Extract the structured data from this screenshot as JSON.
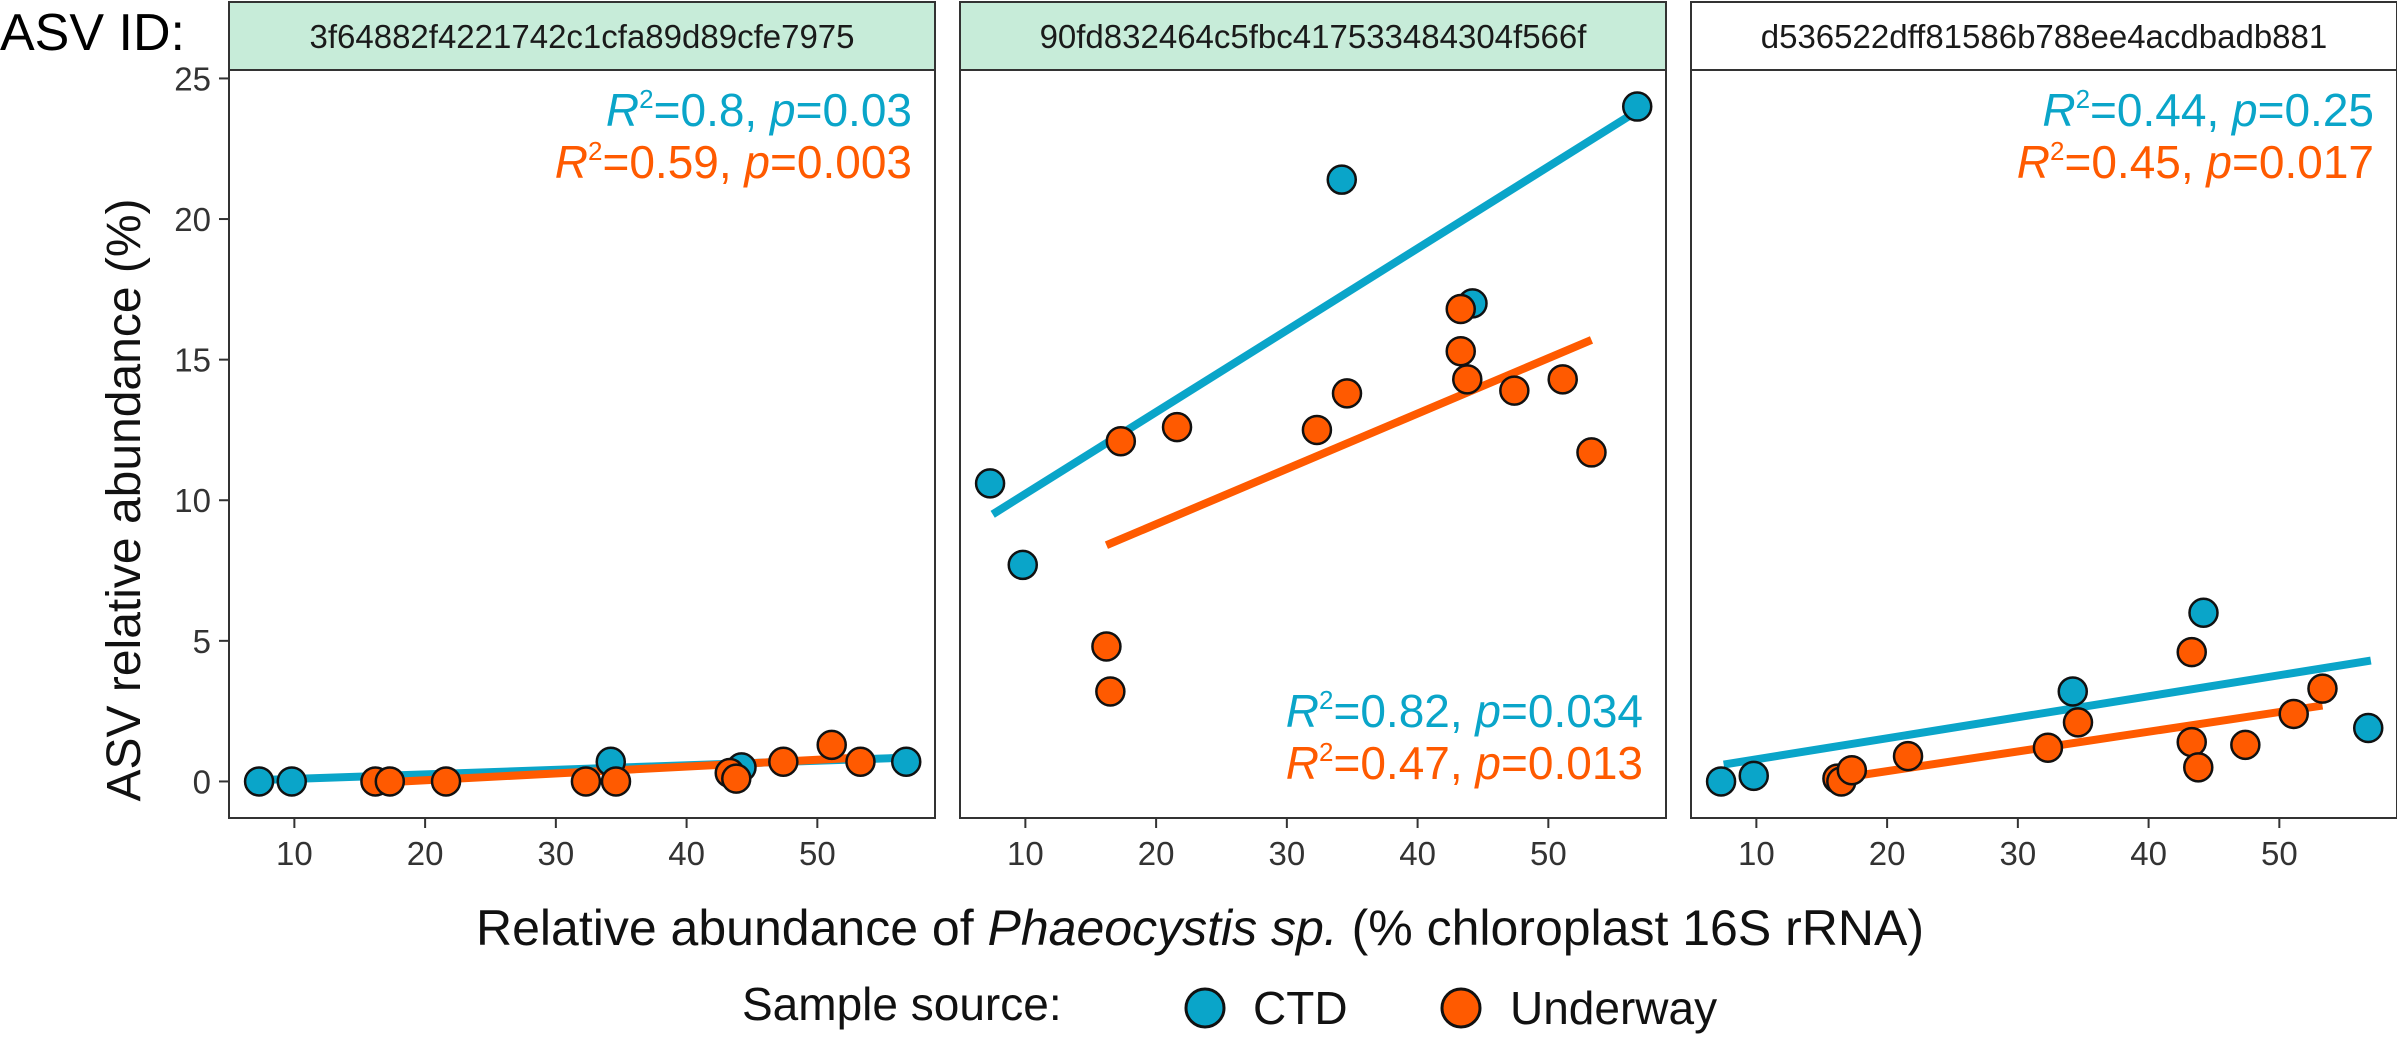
{
  "colors": {
    "ctd": "#0aa5c9",
    "underway": "#ff5a00",
    "strip_highlight": "#c7ecd9",
    "strip_plain": "#ffffff",
    "frame": "#333333"
  },
  "figure": {
    "facet_label": "ASV ID:",
    "xlabel_prefix": "Relative abundance of ",
    "xlabel_italic": "Phaeocystis sp.",
    "xlabel_suffix": " (% chloroplast 16S rRNA)",
    "ylabel": "ASV relative abundance (%)",
    "legend_title": "Sample source:",
    "legend_ctd": "CTD",
    "legend_underway": "Underway"
  },
  "chart_data": [
    {
      "type": "scatter",
      "panel": "3f64882f4221742c1cfa89d89cfe7975",
      "strip_highlight": true,
      "xlim": [
        5,
        59
      ],
      "ylim": [
        -1.3,
        25.3
      ],
      "x_ticks": [
        10,
        20,
        30,
        40,
        50
      ],
      "y_ticks": [
        0,
        5,
        10,
        15,
        20,
        25
      ],
      "annotation_position": "top-right",
      "series": [
        {
          "name": "CTD",
          "points": [
            [
              7.3,
              0.0
            ],
            [
              9.8,
              0.0
            ],
            [
              34.2,
              0.7
            ],
            [
              44.2,
              0.5
            ],
            [
              56.8,
              0.7
            ]
          ],
          "fit": [
            [
              7.5,
              0.05
            ],
            [
              57,
              0.85
            ]
          ],
          "stats": {
            "r2": "0.8",
            "p": "0.03"
          }
        },
        {
          "name": "Underway",
          "points": [
            [
              16.2,
              0.0
            ],
            [
              17.3,
              0.0
            ],
            [
              21.6,
              0.0
            ],
            [
              32.3,
              0.0
            ],
            [
              34.6,
              0.0
            ],
            [
              43.3,
              0.3
            ],
            [
              43.8,
              0.1
            ],
            [
              47.4,
              0.7
            ],
            [
              51.1,
              1.3
            ],
            [
              53.3,
              0.7
            ]
          ],
          "fit": [
            [
              16.2,
              -0.05
            ],
            [
              53.3,
              0.85
            ]
          ],
          "stats": {
            "r2": "0.59",
            "p": "0.003"
          }
        }
      ]
    },
    {
      "type": "scatter",
      "panel": "90fd832464c5fbc417533484304f566f",
      "strip_highlight": true,
      "xlim": [
        5,
        59
      ],
      "ylim": [
        -1.3,
        25.3
      ],
      "x_ticks": [
        10,
        20,
        30,
        40,
        50
      ],
      "y_ticks": [
        0,
        5,
        10,
        15,
        20,
        25
      ],
      "annotation_position": "bottom-right",
      "series": [
        {
          "name": "CTD",
          "points": [
            [
              7.3,
              10.6
            ],
            [
              9.8,
              7.7
            ],
            [
              34.2,
              21.4
            ],
            [
              44.2,
              17.0
            ],
            [
              56.8,
              24.0
            ]
          ],
          "fit": [
            [
              7.5,
              9.5
            ],
            [
              57,
              23.9
            ]
          ],
          "stats": {
            "r2": "0.82",
            "p": "0.034"
          }
        },
        {
          "name": "Underway",
          "points": [
            [
              16.2,
              4.8
            ],
            [
              16.5,
              3.2
            ],
            [
              17.3,
              12.1
            ],
            [
              21.6,
              12.6
            ],
            [
              32.3,
              12.5
            ],
            [
              34.6,
              13.8
            ],
            [
              43.3,
              16.8
            ],
            [
              43.3,
              15.3
            ],
            [
              43.8,
              14.3
            ],
            [
              47.4,
              13.9
            ],
            [
              51.1,
              14.3
            ],
            [
              53.3,
              11.7
            ]
          ],
          "fit": [
            [
              16.2,
              8.4
            ],
            [
              53.3,
              15.7
            ]
          ],
          "stats": {
            "r2": "0.47",
            "p": "0.013"
          }
        }
      ]
    },
    {
      "type": "scatter",
      "panel": "d536522dff81586b788ee4acdbadb881",
      "strip_highlight": false,
      "xlim": [
        5,
        59
      ],
      "ylim": [
        -1.3,
        25.3
      ],
      "x_ticks": [
        10,
        20,
        30,
        40,
        50
      ],
      "y_ticks": [
        0,
        5,
        10,
        15,
        20,
        25
      ],
      "annotation_position": "top-right",
      "series": [
        {
          "name": "CTD",
          "points": [
            [
              7.3,
              0.0
            ],
            [
              9.8,
              0.2
            ],
            [
              34.2,
              3.2
            ],
            [
              44.2,
              6.0
            ],
            [
              56.8,
              1.9
            ]
          ],
          "fit": [
            [
              7.5,
              0.6
            ],
            [
              57,
              4.3
            ]
          ],
          "stats": {
            "r2": "0.44",
            "p": "0.25"
          }
        },
        {
          "name": "Underway",
          "points": [
            [
              16.2,
              0.1
            ],
            [
              16.5,
              0.0
            ],
            [
              17.3,
              0.4
            ],
            [
              21.6,
              0.9
            ],
            [
              32.3,
              1.2
            ],
            [
              34.6,
              2.1
            ],
            [
              43.3,
              4.6
            ],
            [
              43.3,
              1.4
            ],
            [
              43.8,
              0.5
            ],
            [
              47.4,
              1.3
            ],
            [
              51.1,
              2.4
            ],
            [
              53.3,
              3.3
            ]
          ],
          "fit": [
            [
              16.2,
              0.1
            ],
            [
              53.3,
              2.7
            ]
          ],
          "stats": {
            "r2": "0.45",
            "p": "0.017"
          }
        }
      ]
    }
  ]
}
